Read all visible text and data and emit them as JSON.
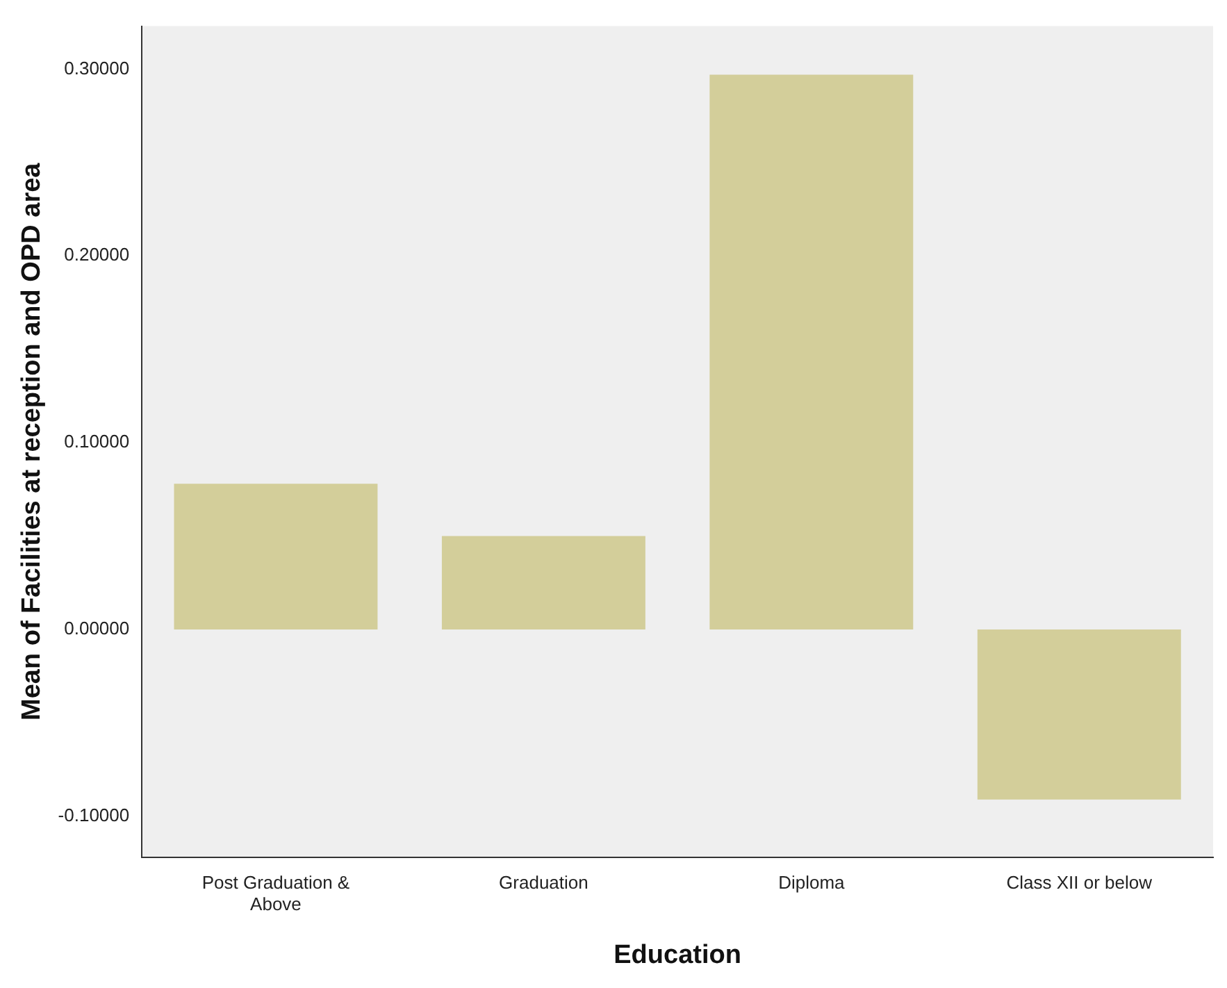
{
  "chart_data": {
    "type": "bar",
    "xlabel": "Education",
    "ylabel": "Mean of Facilities at reception and OPD area",
    "categories": [
      "Post Graduation & Above",
      "Graduation",
      "Diploma",
      "Class XII or below"
    ],
    "values": [
      0.078,
      0.05,
      0.297,
      -0.091
    ],
    "color": "#d3ce9a",
    "ylim": [
      -0.122,
      0.323
    ],
    "yticks": [
      {
        "value": -0.1,
        "label": "-0.10000"
      },
      {
        "value": 0,
        "label": "0.00000"
      },
      {
        "value": 0.1,
        "label": "0.10000"
      },
      {
        "value": 0.2,
        "label": "0.20000"
      },
      {
        "value": 0.3,
        "label": "0.30000"
      }
    ],
    "grid": false
  }
}
